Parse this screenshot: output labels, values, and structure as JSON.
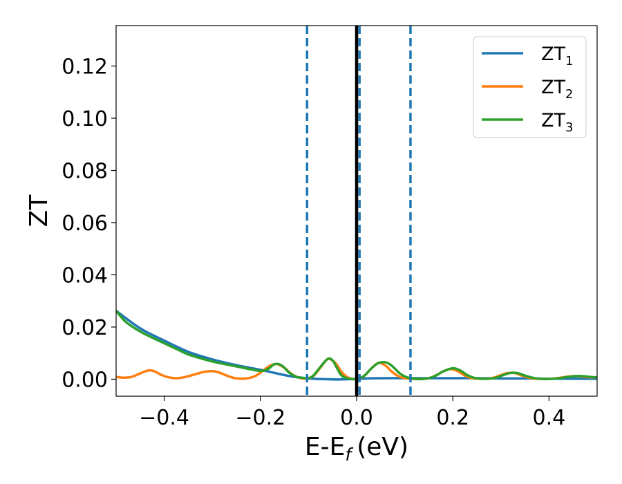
{
  "chart_data": {
    "type": "line",
    "title": "",
    "xlabel": "E-E",
    "xlabel_sub": "f",
    "xlabel_unit": "(eV)",
    "ylabel": "ZT",
    "xlim": [
      -0.5,
      0.5
    ],
    "ylim": [
      -0.0065,
      0.1355
    ],
    "x_ticks": [
      -0.4,
      -0.2,
      0.0,
      0.2,
      0.4
    ],
    "x_tick_labels": [
      "−0.4",
      "−0.2",
      "0.0",
      "0.2",
      "0.4"
    ],
    "y_ticks": [
      0.0,
      0.02,
      0.04,
      0.06,
      0.08,
      0.1,
      0.12
    ],
    "y_tick_labels": [
      "0.00",
      "0.02",
      "0.04",
      "0.06",
      "0.08",
      "0.10",
      "0.12"
    ],
    "grid": false,
    "legend_position": "top-right",
    "vertical_lines": [
      {
        "x": -0.103,
        "style": "dashed",
        "color": "#1f77b4"
      },
      {
        "x": 0.0,
        "style": "solid",
        "color": "#000000"
      },
      {
        "x": 0.006,
        "style": "dashed",
        "color": "#1f77b4"
      },
      {
        "x": 0.112,
        "style": "dashed",
        "color": "#1f77b4"
      }
    ],
    "series": [
      {
        "name": "ZT",
        "name_sub": "1",
        "color": "#1f77b4",
        "x": [
          -0.5,
          -0.45,
          -0.4,
          -0.35,
          -0.3,
          -0.25,
          -0.2,
          -0.17,
          -0.15,
          -0.13,
          -0.11,
          -0.1,
          -0.09,
          -0.08,
          -0.06,
          -0.04,
          -0.02,
          0.0,
          0.02,
          0.05,
          0.1,
          0.15,
          0.2,
          0.25,
          0.3,
          0.35,
          0.4,
          0.45,
          0.5
        ],
        "y": [
          0.0262,
          0.0195,
          0.0148,
          0.0105,
          0.0076,
          0.0054,
          0.0036,
          0.0024,
          0.0016,
          0.0009,
          0.0005,
          0.0003,
          0.0002,
          0.0001,
          0.0,
          -0.0001,
          0.0,
          0.0001,
          0.0003,
          0.0004,
          0.0004,
          0.0004,
          0.0004,
          0.0004,
          0.0003,
          0.0003,
          0.0002,
          0.0002,
          0.0002
        ]
      },
      {
        "name": "ZT",
        "name_sub": "2",
        "color": "#ff7f0e",
        "x": [
          -0.5,
          -0.485,
          -0.47,
          -0.455,
          -0.44,
          -0.43,
          -0.42,
          -0.405,
          -0.39,
          -0.375,
          -0.36,
          -0.345,
          -0.33,
          -0.315,
          -0.3,
          -0.285,
          -0.27,
          -0.255,
          -0.24,
          -0.225,
          -0.21,
          -0.195,
          -0.18,
          -0.165,
          -0.15,
          -0.135,
          -0.12,
          -0.105,
          -0.09,
          -0.075,
          -0.06,
          -0.045,
          -0.03,
          -0.015,
          0.0,
          0.015,
          0.03,
          0.045,
          0.06,
          0.075,
          0.09,
          0.105,
          0.12,
          0.135,
          0.15,
          0.165,
          0.18,
          0.195,
          0.21,
          0.225,
          0.24,
          0.255,
          0.27,
          0.285,
          0.3,
          0.315,
          0.33,
          0.345,
          0.36,
          0.375,
          0.39,
          0.405,
          0.42,
          0.435,
          0.45,
          0.465,
          0.48,
          0.5
        ],
        "y": [
          0.0009,
          0.0006,
          0.0008,
          0.0018,
          0.003,
          0.0034,
          0.003,
          0.0016,
          0.0007,
          0.0004,
          0.0007,
          0.0014,
          0.0022,
          0.0029,
          0.0031,
          0.0025,
          0.0014,
          0.0005,
          0.0002,
          0.0004,
          0.0013,
          0.0032,
          0.0052,
          0.0058,
          0.0043,
          0.002,
          0.0006,
          0.0003,
          0.0012,
          0.0045,
          0.0077,
          0.0064,
          0.0025,
          0.0004,
          0.0002,
          0.0011,
          0.004,
          0.0062,
          0.0052,
          0.0026,
          0.0009,
          0.0003,
          0.0001,
          0.0001,
          0.0004,
          0.0015,
          0.003,
          0.0039,
          0.0031,
          0.0014,
          0.0004,
          0.0002,
          0.0002,
          0.0006,
          0.0016,
          0.0024,
          0.0023,
          0.0013,
          0.0005,
          0.0002,
          0.0001,
          0.0002,
          0.0005,
          0.0009,
          0.0012,
          0.0011,
          0.0008,
          0.0007
        ]
      },
      {
        "name": "ZT",
        "name_sub": "3",
        "color": "#2ca02c",
        "x": [
          -0.5,
          -0.48,
          -0.45,
          -0.42,
          -0.4,
          -0.37,
          -0.35,
          -0.32,
          -0.3,
          -0.28,
          -0.25,
          -0.22,
          -0.2,
          -0.185,
          -0.17,
          -0.155,
          -0.14,
          -0.125,
          -0.11,
          -0.1,
          -0.09,
          -0.075,
          -0.06,
          -0.05,
          -0.04,
          -0.03,
          -0.015,
          0.0,
          0.015,
          0.03,
          0.045,
          0.06,
          0.07,
          0.08,
          0.09,
          0.105,
          0.12,
          0.135,
          0.15,
          0.165,
          0.18,
          0.2,
          0.215,
          0.23,
          0.245,
          0.26,
          0.275,
          0.29,
          0.305,
          0.32,
          0.335,
          0.35,
          0.365,
          0.38,
          0.395,
          0.41,
          0.425,
          0.44,
          0.455,
          0.47,
          0.485,
          0.5
        ],
        "y": [
          0.0262,
          0.022,
          0.0183,
          0.0155,
          0.0138,
          0.0112,
          0.0095,
          0.0078,
          0.0068,
          0.006,
          0.0049,
          0.0038,
          0.0032,
          0.0038,
          0.0058,
          0.0052,
          0.0025,
          0.0009,
          0.0005,
          0.0004,
          0.0014,
          0.0048,
          0.0078,
          0.0072,
          0.004,
          0.0012,
          0.0002,
          0.0001,
          0.0012,
          0.004,
          0.0062,
          0.0065,
          0.0056,
          0.004,
          0.0022,
          0.0007,
          0.0002,
          0.0001,
          0.0004,
          0.0014,
          0.003,
          0.0042,
          0.0034,
          0.0016,
          0.0005,
          0.0002,
          0.0002,
          0.0006,
          0.0016,
          0.0024,
          0.0023,
          0.0014,
          0.0006,
          0.0002,
          0.0001,
          0.0002,
          0.0005,
          0.0009,
          0.0012,
          0.0012,
          0.0009,
          0.0007
        ]
      }
    ]
  }
}
